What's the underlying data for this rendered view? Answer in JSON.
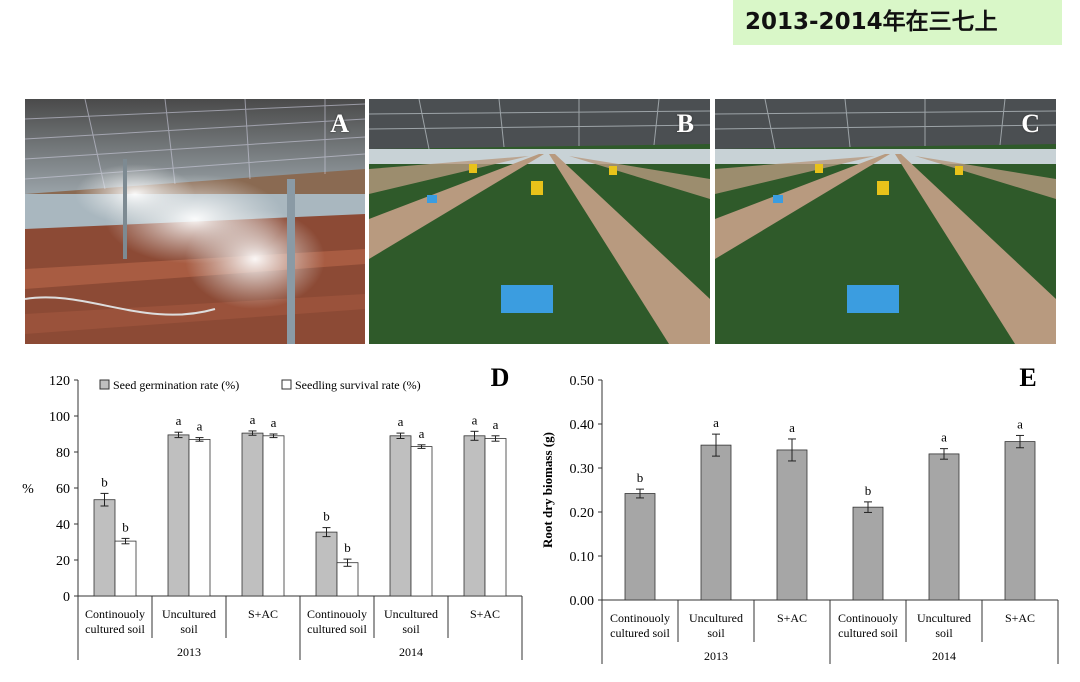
{
  "header": {
    "title": "2013-2014年在三七上"
  },
  "photos": [
    {
      "letter": "A"
    },
    {
      "letter": "B"
    },
    {
      "letter": "C"
    }
  ],
  "chart_data": [
    {
      "type": "bar",
      "panel": "D",
      "ylabel": "%",
      "ylim": [
        0,
        120
      ],
      "yticks": [
        "0",
        "20",
        "40",
        "60",
        "80",
        "100",
        "120"
      ],
      "legend": [
        "Seed germination rate (%)",
        "Seedling survival rate (%)"
      ],
      "groups": [
        {
          "year": "2013",
          "categories": [
            {
              "label1": "Continouoly",
              "label2": "cultured soil"
            },
            {
              "label1": "Uncultured",
              "label2": "soil"
            },
            {
              "label1": "S+AC",
              "label2": ""
            }
          ]
        },
        {
          "year": "2014",
          "categories": [
            {
              "label1": "Continouoly",
              "label2": "cultured soil"
            },
            {
              "label1": "Uncultured",
              "label2": "soil"
            },
            {
              "label1": "S+AC",
              "label2": ""
            }
          ]
        }
      ],
      "series": [
        {
          "name": "Seed germination rate (%)",
          "color": "#bfbfbf",
          "values": [
            53.5,
            89.5,
            90.5,
            35.5,
            89.0,
            89.0
          ],
          "errors": [
            3.5,
            1.5,
            1.2,
            2.5,
            1.5,
            2.5
          ],
          "letters": [
            "b",
            "a",
            "a",
            "b",
            "a",
            "a"
          ]
        },
        {
          "name": "Seedling survival rate (%)",
          "color": "#ffffff",
          "values": [
            30.5,
            87.0,
            89.0,
            18.5,
            83.0,
            87.5
          ],
          "errors": [
            1.5,
            1.0,
            1.0,
            2.0,
            1.0,
            1.5
          ],
          "letters": [
            "b",
            "a",
            "a",
            "b",
            "a",
            "a"
          ]
        }
      ]
    },
    {
      "type": "bar",
      "panel": "E",
      "ylabel": "Root dry biomass (g)",
      "ylim": [
        0,
        0.5
      ],
      "yticks": [
        "0.00",
        "0.10",
        "0.20",
        "0.30",
        "0.40",
        "0.50"
      ],
      "groups": [
        {
          "year": "2013",
          "categories": [
            {
              "label1": "Continouoly",
              "label2": "cultured soil"
            },
            {
              "label1": "Uncultured",
              "label2": "soil"
            },
            {
              "label1": "S+AC",
              "label2": ""
            }
          ]
        },
        {
          "year": "2014",
          "categories": [
            {
              "label1": "Continouoly",
              "label2": "cultured soil"
            },
            {
              "label1": "Uncultured",
              "label2": "soil"
            },
            {
              "label1": "S+AC",
              "label2": ""
            }
          ]
        }
      ],
      "series": [
        {
          "name": "Root dry biomass (g)",
          "color": "#a6a6a6",
          "values": [
            0.242,
            0.352,
            0.341,
            0.211,
            0.332,
            0.36
          ],
          "errors": [
            0.01,
            0.025,
            0.025,
            0.012,
            0.012,
            0.014
          ],
          "letters": [
            "b",
            "a",
            "a",
            "b",
            "a",
            "a"
          ]
        }
      ]
    }
  ]
}
